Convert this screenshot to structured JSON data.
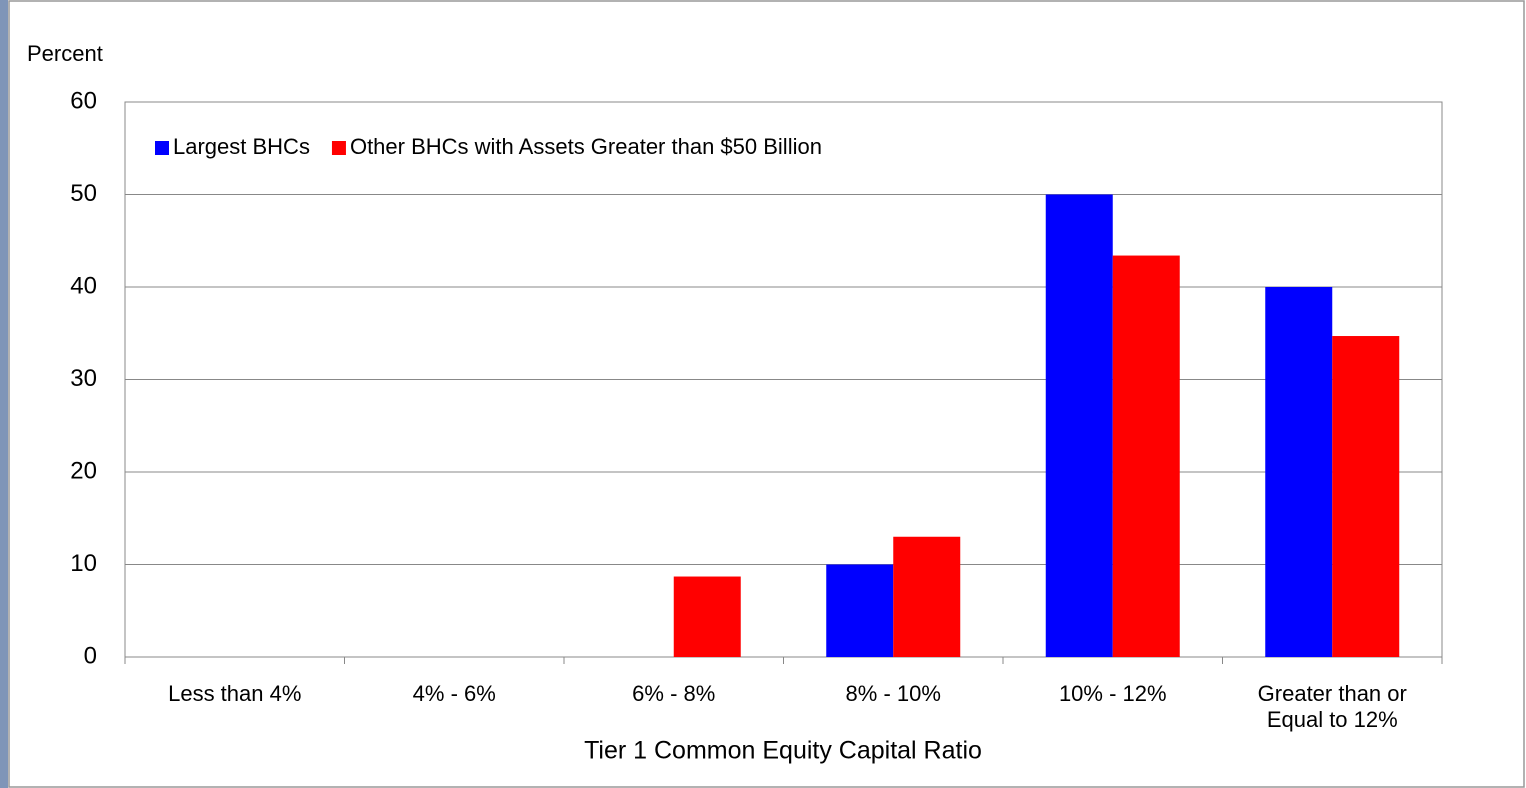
{
  "chart_data": {
    "type": "bar",
    "y_label": "Percent",
    "x_label": "Tier 1 Common Equity Capital Ratio",
    "categories": [
      "Less than 4%",
      "4% - 6%",
      "6% - 8%",
      "8% - 10%",
      "10% - 12%",
      "Greater than or Equal to 12%"
    ],
    "series": [
      {
        "name": "Largest BHCs",
        "color": "#0000ff",
        "values": [
          0,
          0,
          0,
          10,
          50,
          40
        ]
      },
      {
        "name": "Other BHCs with Assets Greater than $50 Billion",
        "color": "#ff0000",
        "values": [
          0,
          0,
          8.7,
          13,
          43.4,
          34.7
        ]
      }
    ],
    "ylim": [
      0,
      60
    ],
    "yticks": [
      0,
      10,
      20,
      30,
      40,
      50,
      60
    ],
    "grid": true,
    "legend": "top-left"
  }
}
